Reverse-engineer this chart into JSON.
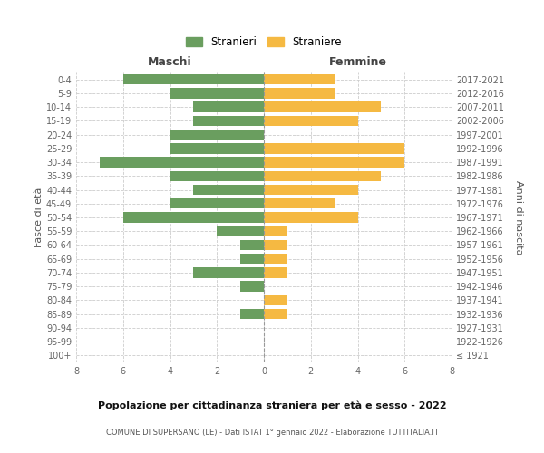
{
  "age_groups": [
    "100+",
    "95-99",
    "90-94",
    "85-89",
    "80-84",
    "75-79",
    "70-74",
    "65-69",
    "60-64",
    "55-59",
    "50-54",
    "45-49",
    "40-44",
    "35-39",
    "30-34",
    "25-29",
    "20-24",
    "15-19",
    "10-14",
    "5-9",
    "0-4"
  ],
  "birth_years": [
    "≤ 1921",
    "1922-1926",
    "1927-1931",
    "1932-1936",
    "1937-1941",
    "1942-1946",
    "1947-1951",
    "1952-1956",
    "1957-1961",
    "1962-1966",
    "1967-1971",
    "1972-1976",
    "1977-1981",
    "1982-1986",
    "1987-1991",
    "1992-1996",
    "1997-2001",
    "2002-2006",
    "2007-2011",
    "2012-2016",
    "2017-2021"
  ],
  "maschi": [
    0,
    0,
    0,
    1,
    0,
    1,
    3,
    1,
    1,
    2,
    6,
    4,
    3,
    4,
    7,
    4,
    4,
    3,
    3,
    4,
    6
  ],
  "femmine": [
    0,
    0,
    0,
    1,
    1,
    0,
    1,
    1,
    1,
    1,
    4,
    3,
    4,
    5,
    6,
    6,
    0,
    4,
    5,
    3,
    3
  ],
  "maschi_color": "#6a9e5f",
  "femmine_color": "#f5b942",
  "title": "Popolazione per cittadinanza straniera per età e sesso - 2022",
  "subtitle": "COMUNE DI SUPERSANO (LE) - Dati ISTAT 1° gennaio 2022 - Elaborazione TUTTITALIA.IT",
  "ylabel_left": "Fasce di età",
  "ylabel_right": "Anni di nascita",
  "xlabel_maschi": "Maschi",
  "xlabel_femmine": "Femmine",
  "legend_maschi": "Stranieri",
  "legend_femmine": "Straniere",
  "xlim": 8,
  "background_color": "#ffffff",
  "grid_color": "#cccccc"
}
